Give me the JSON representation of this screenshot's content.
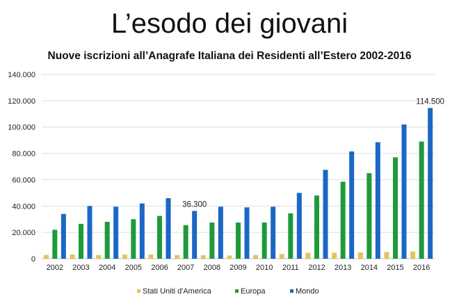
{
  "slide": {
    "title": "L’esodo dei giovani"
  },
  "chart_data": {
    "type": "bar",
    "title": "Nuove iscrizioni all’Anagrafe Italiana dei Residenti all’Estero 2002-2016",
    "xlabel": "",
    "ylabel": "",
    "ylim": [
      0,
      140000
    ],
    "yticks": [
      "0",
      "20.000",
      "40.000",
      "60.000",
      "80.000",
      "100.000",
      "120.000",
      "140.000"
    ],
    "grid": true,
    "legend_position": "bottom",
    "categories": [
      "2002",
      "2003",
      "2004",
      "2005",
      "2006",
      "2007",
      "2008",
      "2009",
      "2010",
      "2011",
      "2012",
      "2013",
      "2014",
      "2015",
      "2016"
    ],
    "series": [
      {
        "name": "Stati Uniti d'America",
        "color": "#e3c35b",
        "values": [
          2800,
          3200,
          2800,
          3200,
          3200,
          2800,
          2600,
          2400,
          2800,
          3600,
          4500,
          4500,
          4800,
          5000,
          5500
        ]
      },
      {
        "name": "Europa",
        "color": "#1f9a3a",
        "values": [
          22000,
          26500,
          28000,
          30000,
          32500,
          25500,
          27500,
          27500,
          27500,
          34500,
          48000,
          58500,
          65000,
          77000,
          89000
        ]
      },
      {
        "name": "Mondo",
        "color": "#1b67c5",
        "values": [
          34000,
          40000,
          39500,
          42000,
          46000,
          36300,
          39500,
          39000,
          39500,
          50000,
          67500,
          81500,
          88500,
          102000,
          114500
        ]
      }
    ],
    "annotations": [
      {
        "category": "2007",
        "series": "Mondo",
        "text": "36.300"
      },
      {
        "category": "2016",
        "series": "Mondo",
        "text": "114.500"
      }
    ]
  }
}
